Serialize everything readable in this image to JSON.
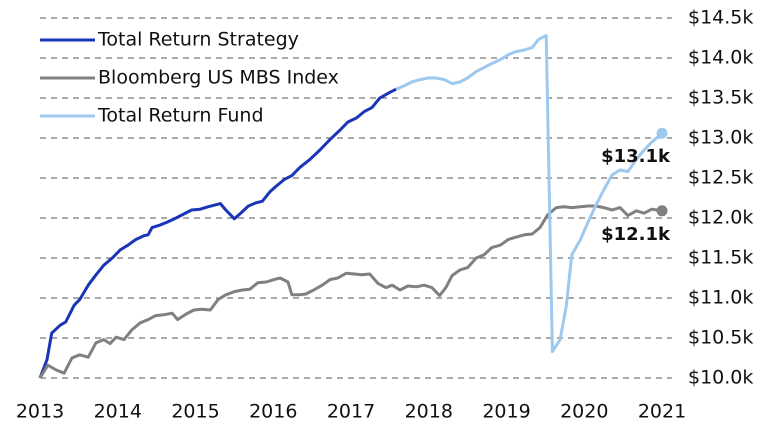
{
  "chart_data": {
    "type": "line",
    "xlim": [
      2013,
      2021
    ],
    "xticks": [
      2013,
      2014,
      2015,
      2016,
      2017,
      2018,
      2019,
      2020,
      2021
    ],
    "ylim": [
      10,
      14.5
    ],
    "yticks": [
      {
        "value": 10,
        "label": "$10.0k"
      },
      {
        "value": 10.5,
        "label": "$10.5k"
      },
      {
        "value": 11,
        "label": "$11.0k"
      },
      {
        "value": 11.5,
        "label": "$11.5k"
      },
      {
        "value": 12,
        "label": "$12.0k"
      },
      {
        "value": 12.5,
        "label": "$12.5k"
      },
      {
        "value": 13,
        "label": "$13.0k"
      },
      {
        "value": 13.5,
        "label": "$13.5k"
      },
      {
        "value": 14,
        "label": "$14.0k"
      },
      {
        "value": 14.5,
        "label": "$14.5k"
      }
    ],
    "grid": true,
    "legend": "top-left",
    "series": [
      {
        "name": "Total Return Strategy",
        "color": "#1a35b5",
        "x": [
          2013.0,
          2013.09,
          2013.15,
          2013.26,
          2013.33,
          2013.44,
          2013.51,
          2013.62,
          2013.72,
          2013.82,
          2013.93,
          2014.03,
          2014.13,
          2014.23,
          2014.34,
          2014.39,
          2014.44,
          2014.54,
          2014.64,
          2014.75,
          2014.85,
          2014.95,
          2015.06,
          2015.16,
          2015.24,
          2015.32,
          2015.39,
          2015.5,
          2015.57,
          2015.68,
          2015.78,
          2015.86,
          2015.96,
          2016.04,
          2016.14,
          2016.24,
          2016.34,
          2016.47,
          2016.6,
          2016.73,
          2016.86,
          2016.96,
          2017.07,
          2017.17,
          2017.27,
          2017.37,
          2017.48,
          2017.58
        ],
        "values": [
          10.0,
          10.23,
          10.56,
          10.66,
          10.7,
          10.91,
          10.98,
          11.16,
          11.29,
          11.41,
          11.5,
          11.6,
          11.66,
          11.73,
          11.78,
          11.79,
          11.88,
          11.91,
          11.95,
          12.0,
          12.05,
          12.1,
          12.11,
          12.14,
          12.16,
          12.18,
          12.1,
          11.99,
          12.05,
          12.15,
          12.19,
          12.21,
          12.33,
          12.4,
          12.48,
          12.53,
          12.63,
          12.73,
          12.85,
          12.98,
          13.1,
          13.2,
          13.25,
          13.33,
          13.38,
          13.5,
          13.56,
          13.61
        ]
      },
      {
        "name": "Bloomberg US MBS Index",
        "color": "#808080",
        "end_label": "$12.1k",
        "x": [
          2013.0,
          2013.1,
          2013.21,
          2013.31,
          2013.41,
          2013.51,
          2013.62,
          2013.72,
          2013.82,
          2013.9,
          2013.98,
          2014.08,
          2014.18,
          2014.29,
          2014.39,
          2014.49,
          2014.59,
          2014.7,
          2014.77,
          2014.88,
          2014.98,
          2015.08,
          2015.19,
          2015.29,
          2015.39,
          2015.5,
          2015.6,
          2015.7,
          2015.8,
          2015.91,
          2016.01,
          2016.09,
          2016.19,
          2016.24,
          2016.34,
          2016.42,
          2016.52,
          2016.63,
          2016.73,
          2016.83,
          2016.94,
          2017.04,
          2017.14,
          2017.24,
          2017.35,
          2017.45,
          2017.53,
          2017.63,
          2017.73,
          2017.84,
          2017.94,
          2018.04,
          2018.14,
          2018.22,
          2018.3,
          2018.4,
          2018.5,
          2018.61,
          2018.71,
          2018.81,
          2018.92,
          2019.02,
          2019.12,
          2019.23,
          2019.33,
          2019.43,
          2019.53,
          2019.64,
          2019.74,
          2019.84,
          2019.95,
          2020.05,
          2020.15,
          2020.25,
          2020.36,
          2020.46,
          2020.56,
          2020.67,
          2020.77,
          2020.87,
          2021.0
        ],
        "values": [
          10.0,
          10.16,
          10.1,
          10.06,
          10.25,
          10.29,
          10.26,
          10.44,
          10.48,
          10.43,
          10.51,
          10.48,
          10.6,
          10.69,
          10.73,
          10.78,
          10.79,
          10.81,
          10.73,
          10.8,
          10.85,
          10.86,
          10.85,
          10.98,
          11.04,
          11.08,
          11.1,
          11.11,
          11.19,
          11.2,
          11.23,
          11.25,
          11.2,
          11.04,
          11.04,
          11.05,
          11.1,
          11.16,
          11.23,
          11.25,
          11.31,
          11.3,
          11.29,
          11.3,
          11.18,
          11.13,
          11.16,
          11.1,
          11.15,
          11.14,
          11.16,
          11.13,
          11.03,
          11.13,
          11.28,
          11.35,
          11.38,
          11.5,
          11.54,
          11.63,
          11.66,
          11.73,
          11.76,
          11.79,
          11.8,
          11.88,
          12.04,
          12.13,
          12.14,
          12.13,
          12.14,
          12.15,
          12.15,
          12.13,
          12.1,
          12.13,
          12.03,
          12.09,
          12.06,
          12.11,
          12.09
        ]
      },
      {
        "name": "Total Return Fund",
        "color": "#9ec9ee",
        "end_label": "$13.1k",
        "x": [
          2017.58,
          2017.68,
          2017.78,
          2017.89,
          2017.99,
          2018.09,
          2018.2,
          2018.3,
          2018.4,
          2018.5,
          2018.61,
          2018.71,
          2018.81,
          2018.92,
          2019.02,
          2019.12,
          2019.23,
          2019.33,
          2019.41,
          2019.51,
          2019.59,
          2019.69,
          2019.77,
          2019.84,
          2019.95,
          2020.05,
          2020.15,
          2020.25,
          2020.36,
          2020.46,
          2020.56,
          2020.67,
          2020.77,
          2020.87,
          2021.0
        ],
        "values": [
          13.61,
          13.65,
          13.7,
          13.73,
          13.75,
          13.75,
          13.73,
          13.68,
          13.7,
          13.75,
          13.83,
          13.88,
          13.93,
          13.98,
          14.04,
          14.08,
          14.1,
          14.13,
          14.23,
          14.28,
          10.33,
          10.48,
          10.91,
          11.54,
          11.73,
          11.95,
          12.16,
          12.35,
          12.54,
          12.6,
          12.58,
          12.73,
          12.85,
          12.95,
          13.06
        ]
      }
    ]
  }
}
